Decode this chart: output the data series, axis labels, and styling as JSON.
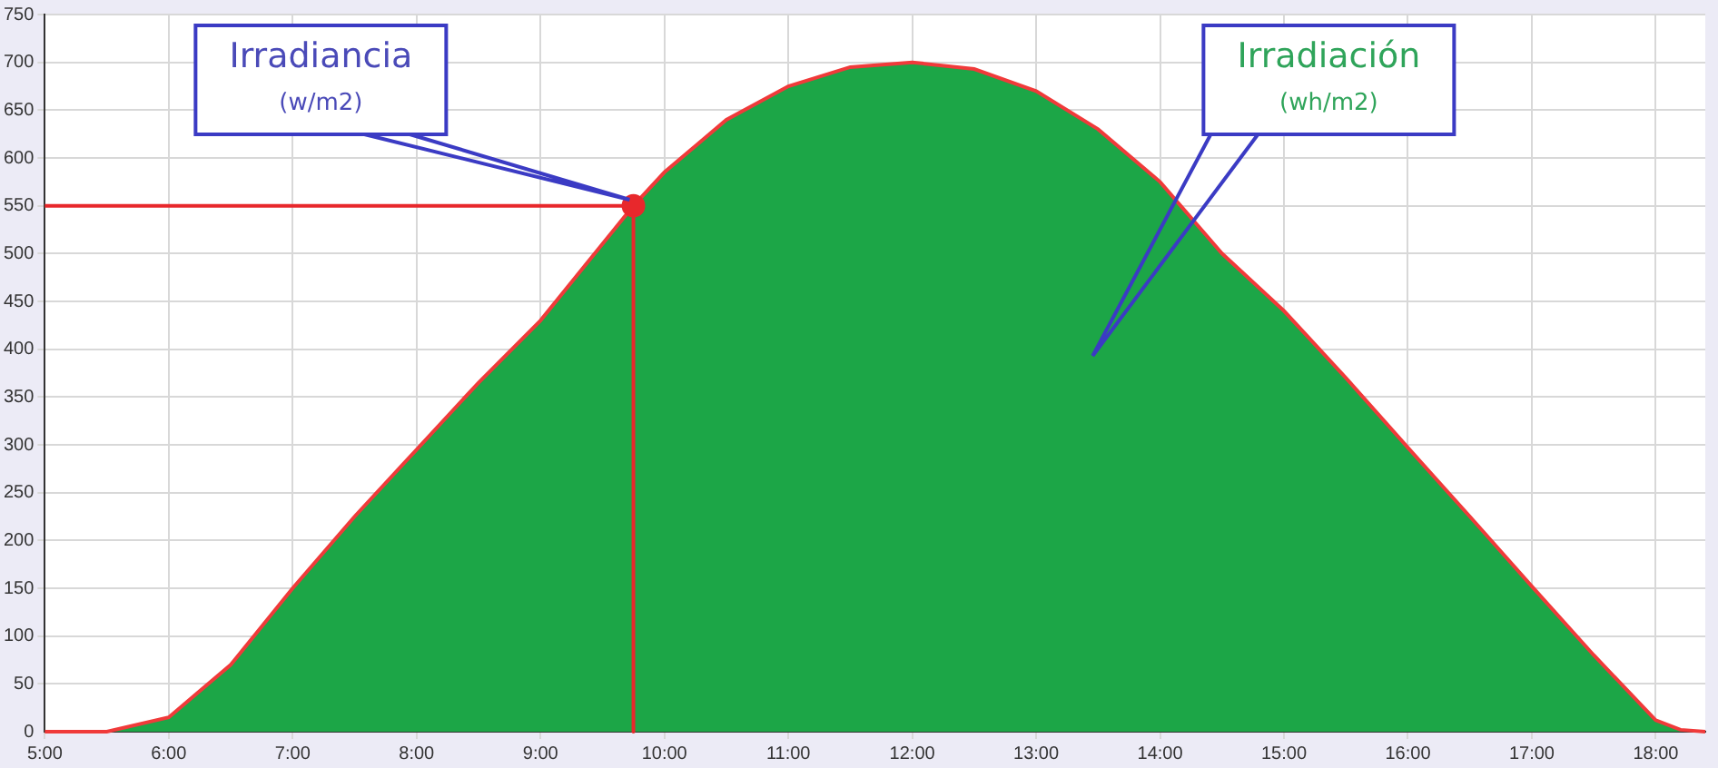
{
  "chart_data": {
    "type": "area",
    "xlim": [
      5,
      18.4
    ],
    "ylim": [
      0,
      750
    ],
    "xticks": [
      {
        "value": 5,
        "label": "5:00"
      },
      {
        "value": 6,
        "label": "6:00"
      },
      {
        "value": 7,
        "label": "7:00"
      },
      {
        "value": 8,
        "label": "8:00"
      },
      {
        "value": 9,
        "label": "9:00"
      },
      {
        "value": 10,
        "label": "10:00"
      },
      {
        "value": 11,
        "label": "11:00"
      },
      {
        "value": 12,
        "label": "12:00"
      },
      {
        "value": 13,
        "label": "13:00"
      },
      {
        "value": 14,
        "label": "14:00"
      },
      {
        "value": 15,
        "label": "15:00"
      },
      {
        "value": 16,
        "label": "16:00"
      },
      {
        "value": 17,
        "label": "17:00"
      },
      {
        "value": 18,
        "label": "18:00"
      }
    ],
    "yticks": [
      0,
      50,
      100,
      150,
      200,
      250,
      300,
      350,
      400,
      450,
      500,
      550,
      600,
      650,
      700,
      750
    ],
    "grid": true,
    "series": [
      {
        "color": "#1ca647",
        "x": [
          5,
          5.5,
          6,
          6.5,
          7,
          7.5,
          8,
          8.5,
          9,
          9.5,
          9.75,
          10,
          10.5,
          11,
          11.5,
          12,
          12.5,
          13,
          13.5,
          14,
          14.5,
          15,
          15.5,
          16,
          16.5,
          17,
          17.5,
          18,
          18.2,
          18.4
        ],
        "values": [
          0,
          0,
          15,
          70,
          150,
          225,
          295,
          365,
          430,
          510,
          550,
          585,
          640,
          675,
          695,
          700,
          693,
          670,
          630,
          575,
          500,
          440,
          370,
          297,
          225,
          152,
          80,
          12,
          2,
          0
        ]
      },
      {
        "type": "line",
        "color": "#e8282c",
        "marker": "none",
        "x": [
          5,
          9.75,
          9.75
        ],
        "values": [
          550,
          550,
          0
        ]
      },
      {
        "type": "scatter",
        "color": "#e8282c",
        "marker": "circle",
        "x": [
          9.75
        ],
        "values": [
          550
        ]
      }
    ],
    "annotations": [
      "Irradiancia\n(w/m2)",
      "Irradiación\n(wh/m2)"
    ]
  }
}
